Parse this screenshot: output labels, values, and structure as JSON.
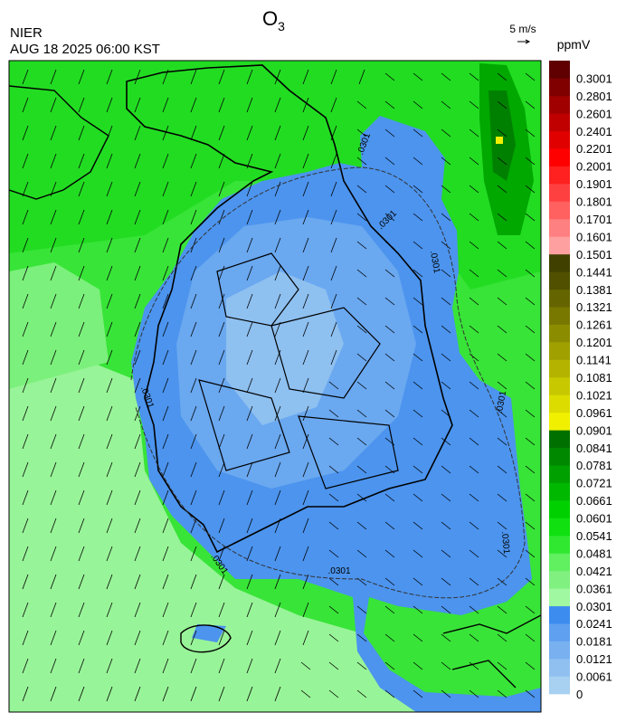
{
  "header": {
    "title_main": "O",
    "title_sub": "3",
    "agency": "NIER",
    "datetime": "AUG 18 2025 06:00 KST",
    "wind_scale": "5 m/s"
  },
  "map": {
    "contour_labels": [
      ".0301",
      ".0301",
      ".0301",
      ".0301",
      ".0301",
      ".0301",
      ".0301",
      ".0301"
    ]
  },
  "colorbar": {
    "unit": "ppmV",
    "levels": [
      0,
      0.0061,
      0.0121,
      0.0181,
      0.0241,
      0.0301,
      0.0361,
      0.0421,
      0.0481,
      0.0541,
      0.0601,
      0.0661,
      0.0721,
      0.0781,
      0.0841,
      0.0901,
      0.0961,
      0.1021,
      0.1081,
      0.1141,
      0.1201,
      0.1261,
      0.1321,
      0.1381,
      0.1441,
      0.1501,
      0.1601,
      0.1701,
      0.1801,
      0.1901,
      0.2001,
      0.2201,
      0.2401,
      0.2601,
      0.2801,
      0.3001
    ],
    "colors": [
      "#a8d0f0",
      "#90c0f0",
      "#78b0f0",
      "#60a0f0",
      "#3c8cf0",
      "#a0f8a0",
      "#80f080",
      "#60f060",
      "#30e830",
      "#10e010",
      "#00d000",
      "#00b800",
      "#00a000",
      "#008800",
      "#007000",
      "#f0f000",
      "#dcdc00",
      "#c8c800",
      "#b4b400",
      "#a0a000",
      "#8c8c00",
      "#787800",
      "#646400",
      "#505000",
      "#404000",
      "#ffa0a0",
      "#ff8080",
      "#ff6060",
      "#ff4040",
      "#ff2020",
      "#ff0000",
      "#e00000",
      "#c00000",
      "#a00000",
      "#800000",
      "#600000"
    ]
  }
}
